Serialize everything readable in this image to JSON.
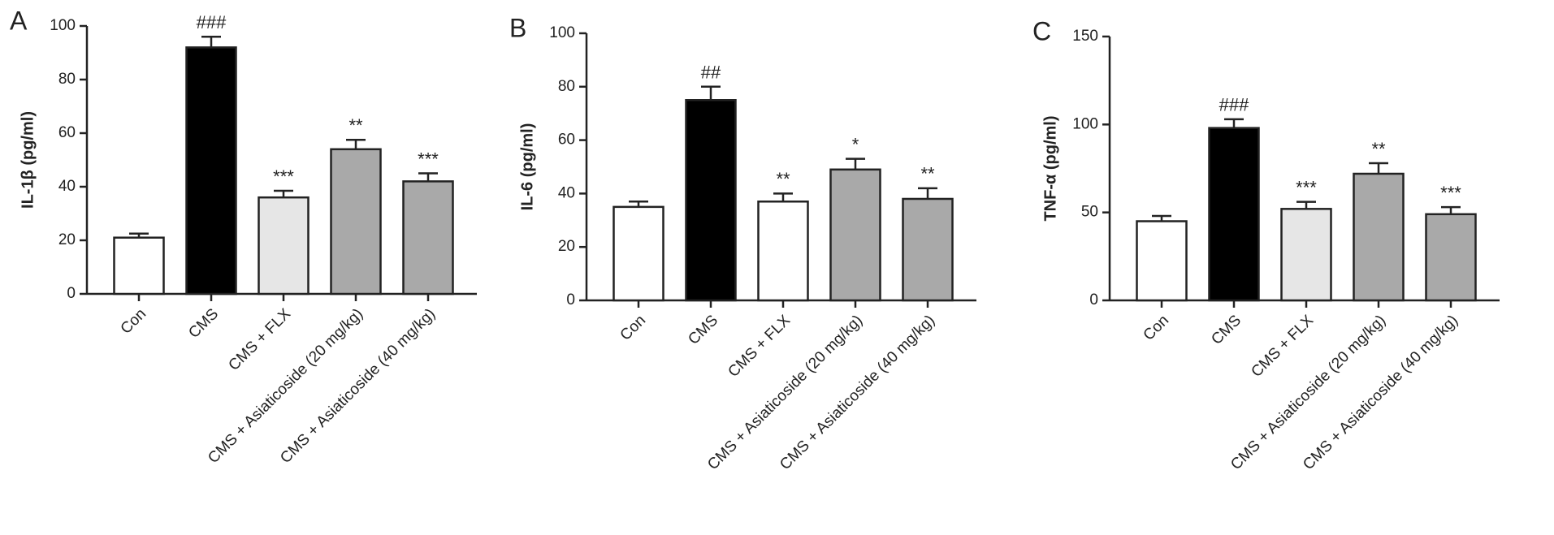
{
  "chart_data": [
    {
      "type": "bar",
      "panel_label": "A",
      "ylabel": "IL-1β (pg/ml)",
      "categories": [
        "Con",
        "CMS",
        "CMS + FLX",
        "CMS + Asiaticoside (20 mg/kg)",
        "CMS + Asiaticoside (40 mg/kg)"
      ],
      "values": [
        21,
        92,
        36,
        54,
        42
      ],
      "errors": [
        1.5,
        4,
        2.5,
        3.5,
        3
      ],
      "annotations": [
        null,
        "###",
        "***",
        "**",
        "***"
      ],
      "colors": [
        "#ffffff",
        "#000000",
        "#e6e6e6",
        "#a9a9a9",
        "#a9a9a9"
      ],
      "ylim": [
        0,
        100
      ],
      "yticks": [
        0,
        20,
        40,
        60,
        80,
        100
      ]
    },
    {
      "type": "bar",
      "panel_label": "B",
      "ylabel": "IL-6 (pg/ml)",
      "categories": [
        "Con",
        "CMS",
        "CMS + FLX",
        "CMS + Asiaticoside (20 mg/kg)",
        "CMS + Asiaticoside (40 mg/kg)"
      ],
      "values": [
        35,
        75,
        37,
        49,
        38
      ],
      "errors": [
        2,
        5,
        3,
        4,
        4
      ],
      "annotations": [
        null,
        "##",
        "**",
        "*",
        "**"
      ],
      "colors": [
        "#ffffff",
        "#000000",
        "#ffffff",
        "#a9a9a9",
        "#a9a9a9"
      ],
      "ylim": [
        0,
        100
      ],
      "yticks": [
        0,
        20,
        40,
        60,
        80,
        100
      ]
    },
    {
      "type": "bar",
      "panel_label": "C",
      "ylabel": "TNF-α (pg/ml)",
      "categories": [
        "Con",
        "CMS",
        "CMS + FLX",
        "CMS + Asiaticoside (20 mg/kg)",
        "CMS + Asiaticoside (40 mg/kg)"
      ],
      "values": [
        45,
        98,
        52,
        72,
        49
      ],
      "errors": [
        3,
        5,
        4,
        6,
        4
      ],
      "annotations": [
        null,
        "###",
        "***",
        "**",
        "***"
      ],
      "colors": [
        "#ffffff",
        "#000000",
        "#e6e6e6",
        "#a9a9a9",
        "#a9a9a9"
      ],
      "ylim": [
        0,
        150
      ],
      "yticks": [
        0,
        50,
        100,
        150
      ]
    }
  ]
}
